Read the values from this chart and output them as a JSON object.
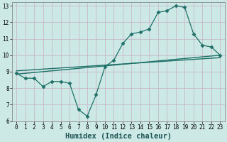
{
  "xlabel": "Humidex (Indice chaleur)",
  "background_color": "#cce9e5",
  "grid_color": "#c8b8c8",
  "line_color": "#1e7068",
  "xlim": [
    -0.5,
    23.5
  ],
  "ylim": [
    6,
    13.2
  ],
  "xticks": [
    0,
    1,
    2,
    3,
    4,
    5,
    6,
    7,
    8,
    9,
    10,
    11,
    12,
    13,
    14,
    15,
    16,
    17,
    18,
    19,
    20,
    21,
    22,
    23
  ],
  "yticks": [
    6,
    7,
    8,
    9,
    10,
    11,
    12,
    13
  ],
  "zigzag_x": [
    0,
    1,
    2,
    3,
    4,
    5,
    6,
    7,
    8,
    9,
    10,
    11,
    12,
    13,
    14,
    15,
    16,
    17,
    18,
    19,
    20,
    21,
    22,
    23
  ],
  "zigzag_y": [
    8.9,
    8.6,
    8.6,
    8.1,
    8.4,
    8.4,
    8.3,
    6.7,
    6.3,
    7.6,
    9.3,
    9.7,
    10.7,
    11.3,
    11.4,
    11.6,
    12.6,
    12.7,
    13.0,
    12.9,
    11.3,
    10.6,
    10.5,
    10.0
  ],
  "trend1_x": [
    0,
    23
  ],
  "trend1_y": [
    8.85,
    10.0
  ],
  "trend2_x": [
    0,
    23
  ],
  "trend2_y": [
    9.05,
    9.85
  ],
  "marker": "D",
  "marker_size": 2.5,
  "tick_fontsize": 5.5,
  "xlabel_fontsize": 7.5
}
